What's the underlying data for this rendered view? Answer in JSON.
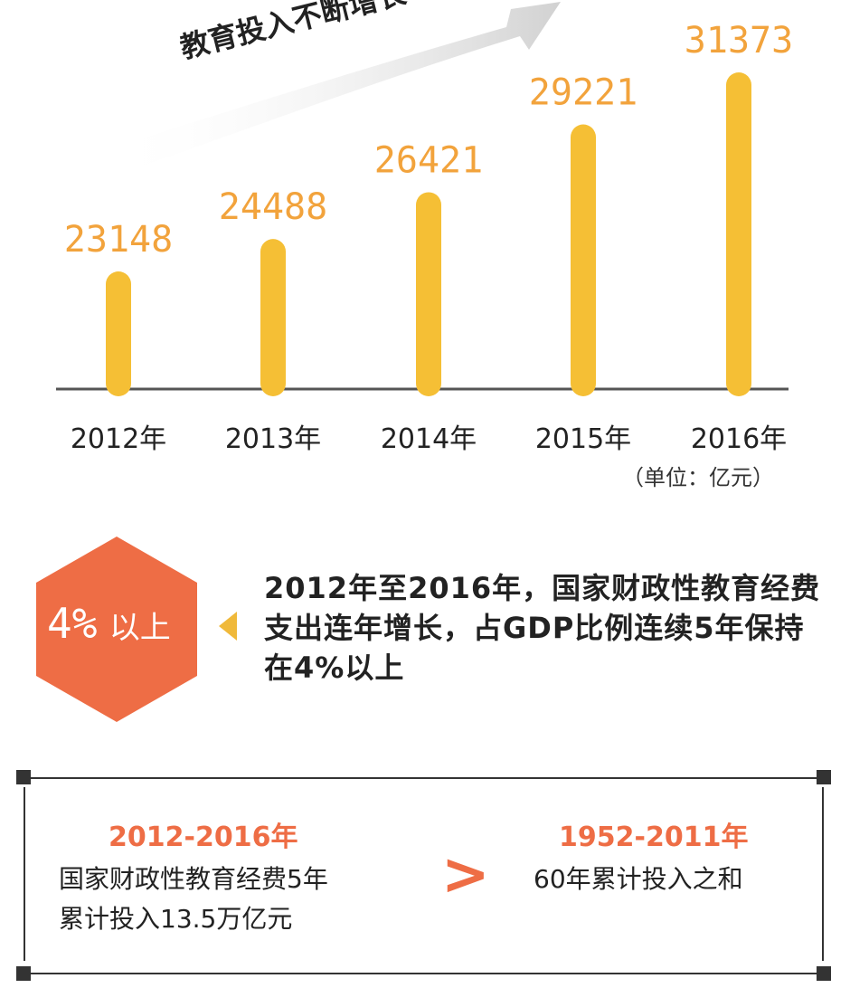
{
  "chart_data": {
    "type": "bar",
    "title": "教育投入不断增长",
    "categories": [
      "2012年",
      "2013年",
      "2014年",
      "2015年",
      "2016年"
    ],
    "values": [
      23148,
      24488,
      26421,
      29221,
      31373
    ],
    "data_labels": [
      "23148",
      "24488",
      "26421",
      "29221",
      "31373"
    ],
    "unit_note": "（单位：亿元）",
    "bar_color": "#f5bf35",
    "label_color": "#f2a33c",
    "grid": false,
    "legend": "none"
  },
  "highlight": {
    "value": "4%",
    "suffix": "以上",
    "hex_color": "#ee6d45",
    "pointer_color": "#f0b93a",
    "statement": "2012年至2016年，国家财政性教育经费支出连年增长，占GDP比例连续5年保持在4%以上"
  },
  "comparison": {
    "left_period": "2012-2016年",
    "left_text_line1": "国家财政性教育经费5年",
    "left_text_line2": "累计投入13.5万亿元",
    "sign": ">",
    "right_period": "1952-2011年",
    "right_text": "60年累计投入之和",
    "accent_color": "#ee6d45"
  }
}
